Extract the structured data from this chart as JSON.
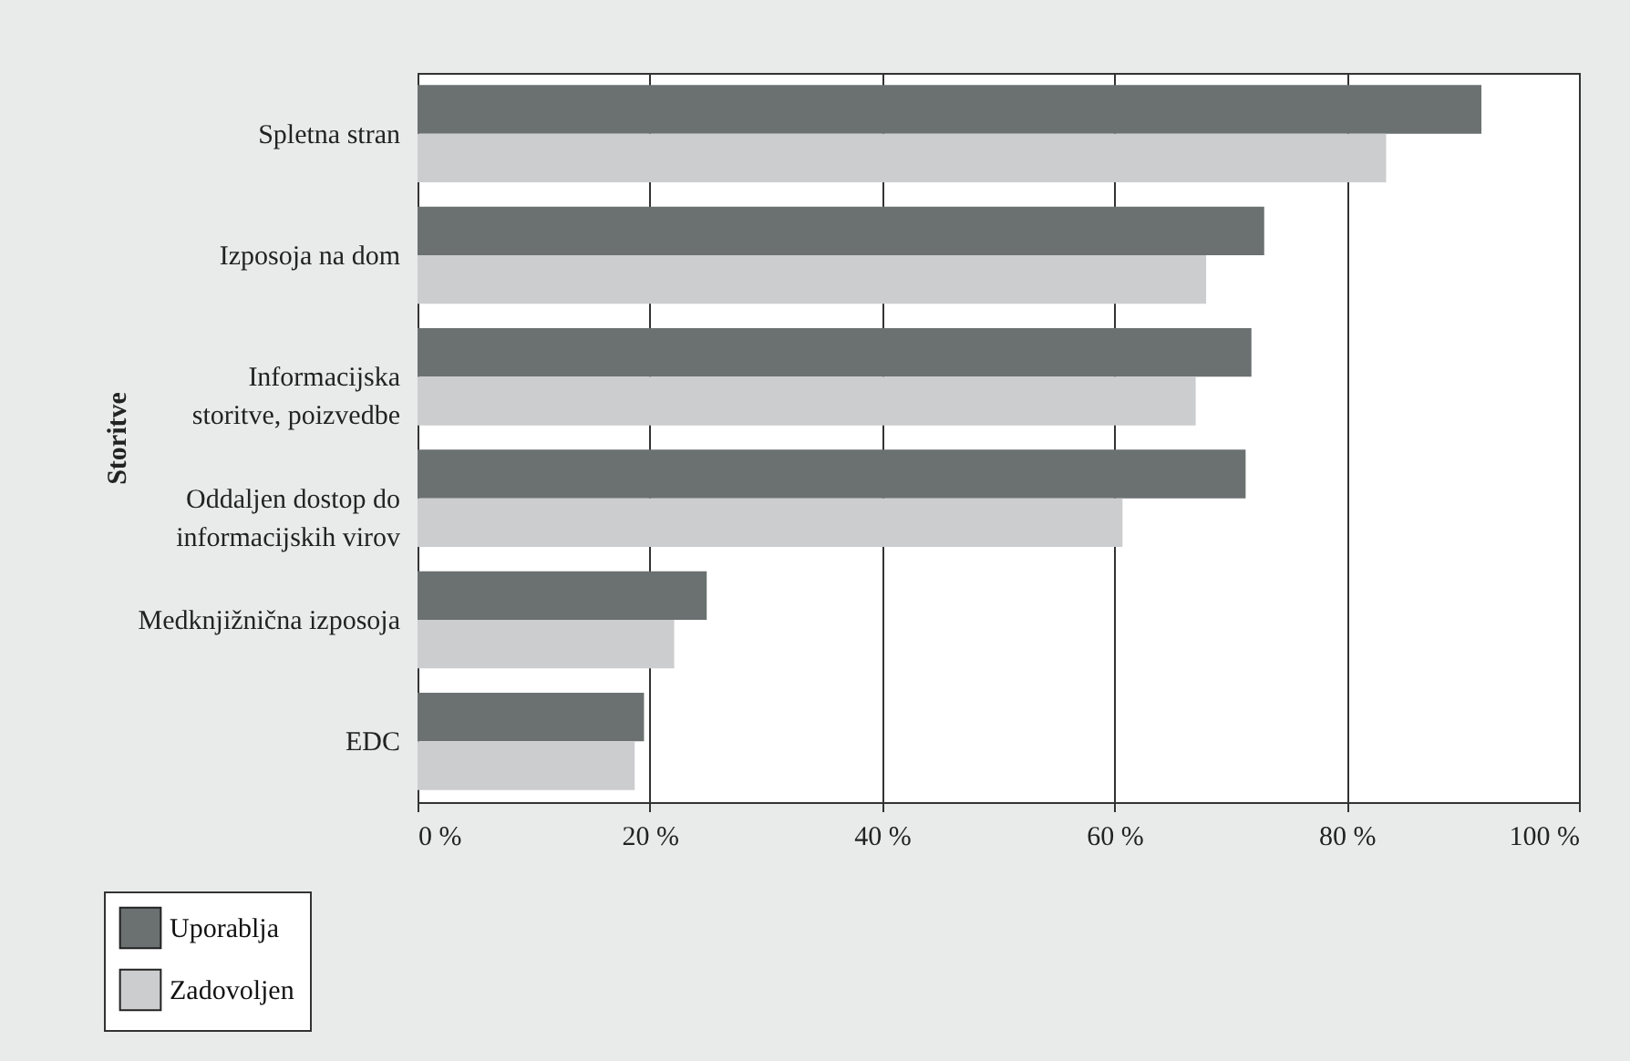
{
  "chart_data": {
    "type": "bar",
    "orientation": "horizontal",
    "ylabel": "Storitve",
    "categories": [
      "Spletna stran",
      "Izposoja na dom",
      "Informacijska storitve, poizvedbe",
      "Oddaljen dostop do informacijskih virov",
      "Medknjižnična izposoja",
      "EDC"
    ],
    "series": [
      {
        "name": "Uporablja",
        "color": "#6b7170",
        "values": [
          91.6,
          72.9,
          71.8,
          71.3,
          24.9,
          19.5
        ]
      },
      {
        "name": "Zadovoljen",
        "color": "#cccdcf",
        "values": [
          83.4,
          67.9,
          67.0,
          60.7,
          22.1,
          18.7
        ]
      }
    ],
    "xlim": [
      0,
      100
    ],
    "xticks": [
      {
        "value": 0,
        "label": "0 %"
      },
      {
        "value": 20,
        "label": "20 %"
      },
      {
        "value": 40,
        "label": "40 %"
      },
      {
        "value": 60,
        "label": "60 %"
      },
      {
        "value": 80,
        "label": "80 %"
      },
      {
        "value": 100,
        "label": "100 %"
      }
    ],
    "grid": "x",
    "legend": "bottom left"
  }
}
